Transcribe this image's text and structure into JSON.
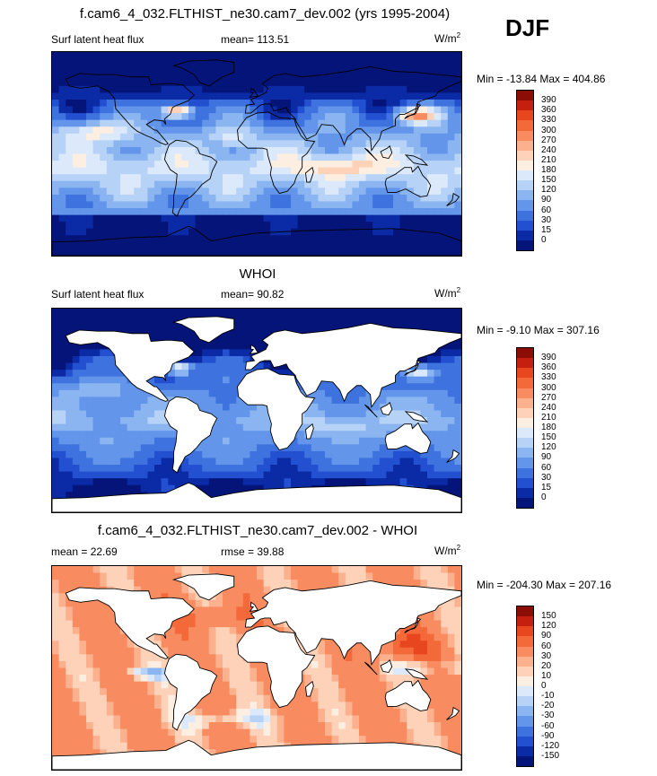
{
  "season": "DJF",
  "panels": [
    {
      "title": "f.cam6_4_032.FLTHIST_ne30.cam7_dev.002 (yrs 1995-2004)",
      "left_label": "Surf latent heat flux",
      "center_label": "mean= 113.51",
      "units": "W/m",
      "units_sup": "2",
      "minmax": "Min = -13.84 Max = 404.86",
      "field": "model",
      "colorbar": {
        "ticks": [
          "390",
          "360",
          "330",
          "300",
          "270",
          "240",
          "210",
          "180",
          "150",
          "120",
          "90",
          "60",
          "30",
          "15",
          "0"
        ],
        "colors": [
          "#8b0d06",
          "#c51f10",
          "#e8461f",
          "#f4693a",
          "#f88c60",
          "#fbb18e",
          "#fdd2b8",
          "#fdeee2",
          "#dbe9fb",
          "#b6d2f6",
          "#8bb5f0",
          "#6395ea",
          "#3e72de",
          "#2350d0",
          "#0b2aa5",
          "#051479"
        ]
      }
    },
    {
      "title": "WHOI",
      "left_label": "Surf latent heat flux",
      "center_label": "mean=  90.82",
      "units": "W/m",
      "units_sup": "2",
      "minmax": "Min =  -9.10 Max = 307.16",
      "field": "obs",
      "colorbar": {
        "ticks": [
          "390",
          "360",
          "330",
          "300",
          "270",
          "240",
          "210",
          "180",
          "150",
          "120",
          "90",
          "60",
          "30",
          "15",
          "0"
        ],
        "colors": [
          "#8b0d06",
          "#c51f10",
          "#e8461f",
          "#f4693a",
          "#f88c60",
          "#fbb18e",
          "#fdd2b8",
          "#fdeee2",
          "#dbe9fb",
          "#b6d2f6",
          "#8bb5f0",
          "#6395ea",
          "#3e72de",
          "#2350d0",
          "#0b2aa5",
          "#051479"
        ]
      }
    },
    {
      "title": "f.cam6_4_032.FLTHIST_ne30.cam7_dev.002 - WHOI",
      "left_label": "mean =  22.69",
      "center_label": "rmse =  39.88",
      "units": "W/m",
      "units_sup": "2",
      "minmax": "Min = -204.30 Max = 207.16",
      "field": "diff",
      "colorbar": {
        "ticks": [
          "150",
          "120",
          "90",
          "60",
          "30",
          "20",
          "10",
          "0",
          "-10",
          "-20",
          "-30",
          "-60",
          "-90",
          "-120",
          "-150"
        ],
        "colors": [
          "#8b0d06",
          "#c51f10",
          "#e8461f",
          "#f4693a",
          "#f88c60",
          "#fbb18e",
          "#fdd2b8",
          "#fdeee2",
          "#dbe9fb",
          "#b6d2f6",
          "#8bb5f0",
          "#6395ea",
          "#3e72de",
          "#2350d0",
          "#0b2aa5",
          "#051479"
        ]
      }
    }
  ],
  "chart_data": [
    {
      "type": "heatmap",
      "title": "f.cam6_4_032.FLTHIST_ne30.cam7_dev.002 (yrs 1995-2004)",
      "variable": "Surf latent heat flux",
      "units": "W/m2",
      "mean": 113.51,
      "min": -13.84,
      "max": 404.86,
      "levels": [
        0,
        15,
        30,
        60,
        90,
        120,
        150,
        180,
        210,
        240,
        270,
        300,
        330,
        360,
        390
      ]
    },
    {
      "type": "heatmap",
      "title": "WHOI",
      "variable": "Surf latent heat flux",
      "units": "W/m2",
      "mean": 90.82,
      "min": -9.1,
      "max": 307.16,
      "levels": [
        0,
        15,
        30,
        60,
        90,
        120,
        150,
        180,
        210,
        240,
        270,
        300,
        330,
        360,
        390
      ]
    },
    {
      "type": "heatmap",
      "title": "f.cam6_4_032.FLTHIST_ne30.cam7_dev.002 - WHOI",
      "units": "W/m2",
      "mean": 22.69,
      "rmse": 39.88,
      "min": -204.3,
      "max": 207.16,
      "levels": [
        -150,
        -120,
        -90,
        -60,
        -30,
        -20,
        -10,
        0,
        10,
        20,
        30,
        60,
        90,
        120,
        150
      ]
    }
  ]
}
